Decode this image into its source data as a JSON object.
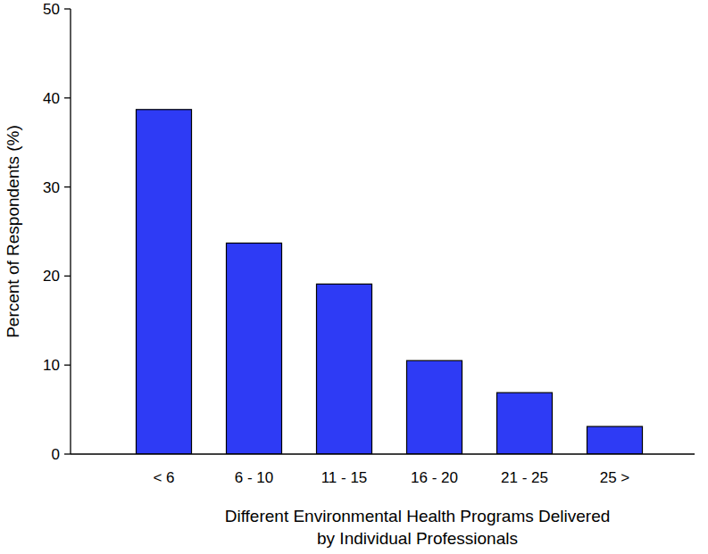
{
  "chart_data": {
    "type": "bar",
    "x_label": "Different Environmental Health Programs Delivered\nby Individual Professionals",
    "y_label": "Percent of Respondents (%)",
    "categories": [
      "< 6",
      "6 - 10",
      "11 - 15",
      "16 - 20",
      "21 - 25",
      "25 >"
    ],
    "values": [
      38.7,
      23.7,
      19.1,
      10.5,
      6.9,
      3.1
    ],
    "color": "#2e3bf5",
    "ylim": [
      0,
      50
    ],
    "yticks": [
      0,
      10,
      20,
      30,
      40,
      50
    ],
    "grid": false
  }
}
